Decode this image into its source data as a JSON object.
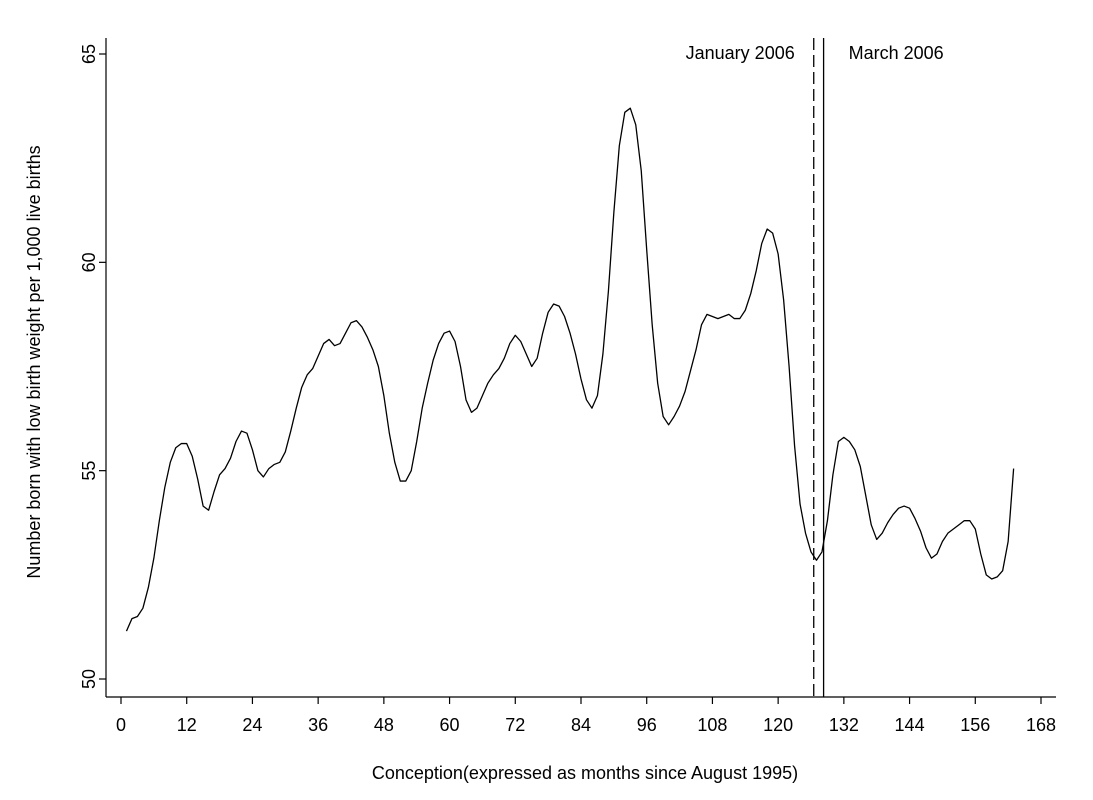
{
  "chart_data": {
    "type": "line",
    "title": "",
    "xlabel": "Conception(expressed as months since August 1995)",
    "ylabel": "Number born with low birth weight per 1,000 live births",
    "xlim": [
      0,
      170
    ],
    "ylim": [
      49.6,
      65.4
    ],
    "xticks": [
      0,
      12,
      24,
      36,
      48,
      60,
      72,
      84,
      96,
      108,
      120,
      132,
      144,
      156,
      168
    ],
    "xtick_labels": [
      "0",
      "12",
      "24",
      "36",
      "48",
      "60",
      "72",
      "84",
      "96",
      "108",
      "120",
      "132",
      "144",
      "156",
      "168"
    ],
    "yticks": [
      50,
      55,
      60,
      65
    ],
    "ytick_labels": [
      "50",
      "55",
      "60",
      "65"
    ],
    "grid": false,
    "legend": "none",
    "line_color": "#000000",
    "reference_lines": [
      {
        "x": 126.5,
        "style": "dashed",
        "label": "January 2006",
        "label_side": "left"
      },
      {
        "x": 128.3,
        "style": "solid",
        "label": "March 2006",
        "label_side": "right"
      }
    ],
    "series": [
      {
        "x": [
          1,
          2,
          3,
          4,
          5,
          6,
          7,
          8,
          9,
          10,
          11,
          12,
          13,
          14,
          15,
          16,
          17,
          18,
          19,
          20,
          21,
          22,
          23,
          24,
          25,
          26,
          27,
          28,
          29,
          30,
          31,
          32,
          33,
          34,
          35,
          36,
          37,
          38,
          39,
          40,
          41,
          42,
          43,
          44,
          45,
          46,
          47,
          48,
          49,
          50,
          51,
          52,
          53,
          54,
          55,
          56,
          57,
          58,
          59,
          60,
          61,
          62,
          63,
          64,
          65,
          66,
          67,
          68,
          69,
          70,
          71,
          72,
          73,
          74,
          75,
          76,
          77,
          78,
          79,
          80,
          81,
          82,
          83,
          84,
          85,
          86,
          87,
          88,
          89,
          90,
          91,
          92,
          93,
          94,
          95,
          96,
          97,
          98,
          99,
          100,
          101,
          102,
          103,
          104,
          105,
          106,
          107,
          108,
          109,
          110,
          111,
          112,
          113,
          114,
          115,
          116,
          117,
          118,
          119,
          120,
          121,
          122,
          123,
          124,
          125,
          126,
          127,
          128,
          129,
          130,
          131,
          132,
          133,
          134,
          135,
          136,
          137,
          138,
          139,
          140,
          141,
          142,
          143,
          144,
          145,
          146,
          147,
          148,
          149,
          150,
          151,
          152,
          153,
          154,
          155,
          156,
          157,
          158,
          159,
          160,
          161,
          162,
          163
        ],
        "y": [
          51.15,
          51.45,
          51.5,
          51.7,
          52.2,
          52.9,
          53.8,
          54.6,
          55.2,
          55.55,
          55.65,
          55.65,
          55.35,
          54.8,
          54.15,
          54.05,
          54.5,
          54.9,
          55.05,
          55.3,
          55.7,
          55.95,
          55.9,
          55.5,
          55.0,
          54.85,
          55.05,
          55.15,
          55.2,
          55.45,
          55.95,
          56.5,
          57.0,
          57.3,
          57.45,
          57.75,
          58.05,
          58.15,
          58.0,
          58.05,
          58.3,
          58.55,
          58.6,
          58.45,
          58.2,
          57.9,
          57.5,
          56.8,
          55.9,
          55.2,
          54.75,
          54.75,
          55.0,
          55.7,
          56.5,
          57.1,
          57.65,
          58.05,
          58.3,
          58.35,
          58.1,
          57.5,
          56.7,
          56.4,
          56.5,
          56.8,
          57.1,
          57.3,
          57.45,
          57.7,
          58.05,
          58.25,
          58.1,
          57.8,
          57.5,
          57.7,
          58.3,
          58.8,
          59.0,
          58.95,
          58.7,
          58.3,
          57.8,
          57.2,
          56.7,
          56.5,
          56.8,
          57.8,
          59.3,
          61.2,
          62.8,
          63.6,
          63.7,
          63.3,
          62.2,
          60.3,
          58.5,
          57.1,
          56.3,
          56.1,
          56.3,
          56.55,
          56.9,
          57.4,
          57.9,
          58.5,
          58.75,
          58.7,
          58.65,
          58.7,
          58.75,
          58.65,
          58.65,
          58.85,
          59.25,
          59.8,
          60.45,
          60.8,
          60.7,
          60.2,
          59.1,
          57.5,
          55.6,
          54.2,
          53.5,
          53.05,
          52.85,
          53.05,
          53.8,
          54.9,
          55.7,
          55.8,
          55.7,
          55.5,
          55.1,
          54.4,
          53.7,
          53.35,
          53.5,
          53.75,
          53.95,
          54.1,
          54.15,
          54.1,
          53.85,
          53.55,
          53.15,
          52.9,
          53.0,
          53.3,
          53.5,
          53.6,
          53.7,
          53.8,
          53.8,
          53.6,
          53.0,
          52.5,
          52.4,
          52.45,
          52.6,
          53.3,
          55.05
        ]
      }
    ]
  }
}
